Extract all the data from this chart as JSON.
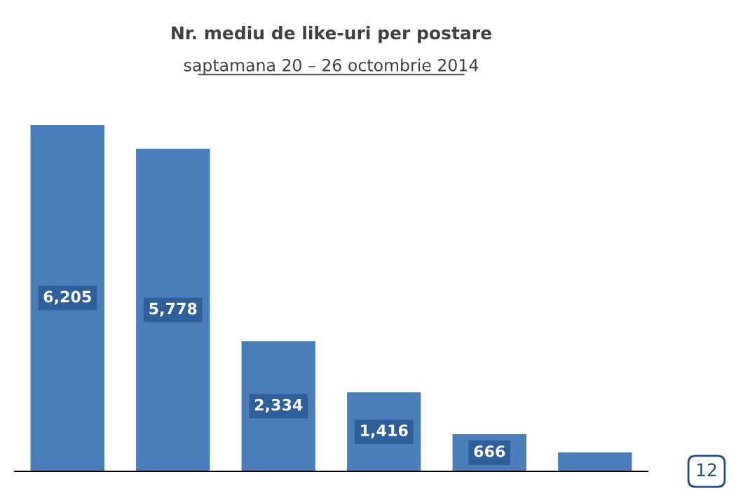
{
  "chart_data": {
    "type": "bar",
    "title": "Nr. mediu de like-uri per postare",
    "subtitle": "saptamana 20 – 26 octombrie 2014",
    "categories": [
      null,
      null,
      null,
      null,
      null,
      null
    ],
    "values": [
      6205,
      5778,
      2334,
      1416,
      666,
      340
    ],
    "value_labels": [
      "6,205",
      "5,778",
      "2,334",
      "1,416",
      "666",
      null
    ],
    "color": "#4a7ebb",
    "annotations": [
      "12"
    ]
  }
}
